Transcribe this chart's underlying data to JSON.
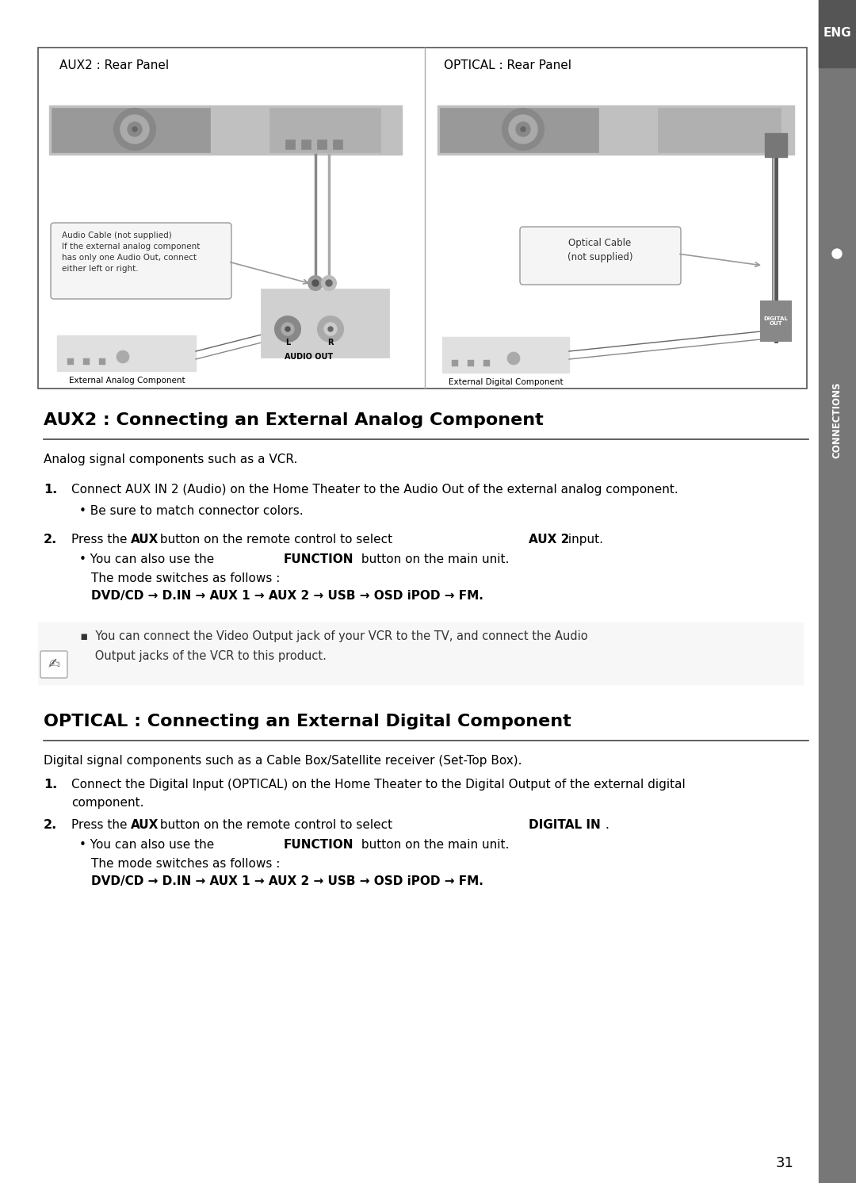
{
  "bg_color": "#ffffff",
  "sidebar_color": "#777777",
  "eng_bg_color": "#555555",
  "aux2_title": "AUX2 : Rear Panel",
  "optical_title": "OPTICAL : Rear Panel",
  "section1_heading": "AUX2 : Connecting an External Analog Component",
  "section1_intro": "Analog signal components such as a VCR.",
  "section1_step1_text": "Connect AUX IN 2 (Audio) on the Home Theater to the Audio Out of the external analog component.",
  "section1_step1_bullet": "Be sure to match connector colors.",
  "section1_mode_line1": "The mode switches as follows :",
  "section1_mode_line2": "DVD/CD → D.IN → AUX 1 → AUX 2 → USB → OSD iPOD → FM.",
  "note_line1": "  ▪  You can connect the Video Output jack of your VCR to the TV, and connect the Audio",
  "note_line2": "      Output jacks of the VCR to this product.",
  "section2_heading": "OPTICAL : Connecting an External Digital Component",
  "section2_intro": "Digital signal components such as a Cable Box/Satellite receiver (Set-Top Box).",
  "section2_step1_text": "Connect the Digital Input (OPTICAL) on the Home Theater to the Digital Output of the external digital",
  "section2_step1_text2": "component.",
  "section2_mode_line1": "The mode switches as follows :",
  "section2_mode_line2": "DVD/CD → D.IN → AUX 1 → AUX 2 → USB → OSD iPOD → FM.",
  "page_number": "31",
  "eng_label": "ENG",
  "connections_label": "CONNECTIONS"
}
